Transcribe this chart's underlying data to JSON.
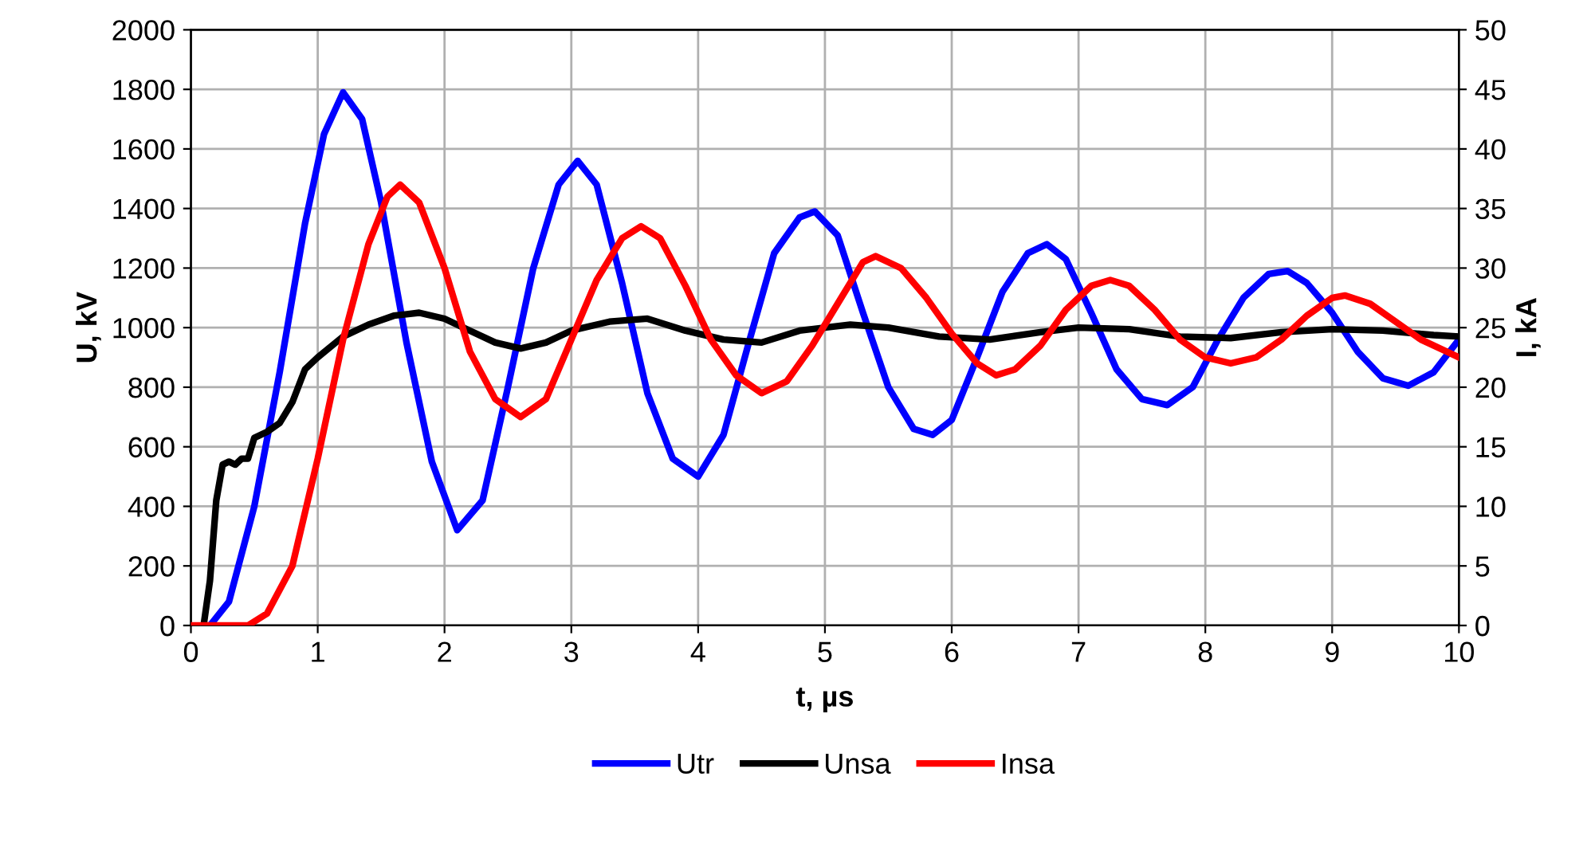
{
  "chart_data": {
    "type": "line",
    "xlabel": "t, µs",
    "ylabel": "U, kV",
    "y2label": "I, kA",
    "xlim": [
      0,
      10
    ],
    "xticks": [
      0,
      1,
      2,
      3,
      4,
      5,
      6,
      7,
      8,
      9,
      10
    ],
    "ylim": [
      0,
      2000
    ],
    "yticks": [
      0,
      200,
      400,
      600,
      800,
      1000,
      1200,
      1400,
      1600,
      1800,
      2000
    ],
    "y2lim": [
      0,
      50
    ],
    "y2ticks": [
      0,
      5,
      10,
      15,
      20,
      25,
      30,
      35,
      40,
      45,
      50
    ],
    "grid": true,
    "legend": "bottom",
    "marker": "none",
    "line_style": "solid",
    "series": [
      {
        "name": "Utr",
        "color": "#0000ff",
        "x": [
          0.15,
          0.3,
          0.5,
          0.7,
          0.9,
          1.05,
          1.2,
          1.35,
          1.5,
          1.7,
          1.9,
          2.1,
          2.3,
          2.5,
          2.7,
          2.9,
          3.05,
          3.2,
          3.4,
          3.6,
          3.8,
          4.0,
          4.2,
          4.4,
          4.6,
          4.8,
          4.92,
          5.1,
          5.3,
          5.5,
          5.7,
          5.85,
          6.0,
          6.2,
          6.4,
          6.6,
          6.75,
          6.9,
          7.1,
          7.3,
          7.5,
          7.7,
          7.9,
          8.1,
          8.3,
          8.5,
          8.65,
          8.8,
          9.0,
          9.2,
          9.4,
          9.6,
          9.8,
          10.0
        ],
        "values": [
          0,
          80,
          400,
          850,
          1350,
          1650,
          1790,
          1700,
          1420,
          950,
          550,
          320,
          420,
          800,
          1200,
          1480,
          1560,
          1480,
          1150,
          780,
          560,
          500,
          640,
          950,
          1250,
          1370,
          1390,
          1310,
          1050,
          800,
          660,
          640,
          690,
          900,
          1120,
          1250,
          1280,
          1230,
          1050,
          860,
          760,
          740,
          800,
          960,
          1100,
          1180,
          1190,
          1150,
          1050,
          920,
          830,
          805,
          850,
          960
        ]
      },
      {
        "name": "Unsa",
        "color": "#000000",
        "x": [
          0.1,
          0.15,
          0.2,
          0.25,
          0.3,
          0.35,
          0.4,
          0.45,
          0.5,
          0.6,
          0.7,
          0.8,
          0.9,
          1.0,
          1.2,
          1.4,
          1.6,
          1.8,
          2.0,
          2.2,
          2.4,
          2.6,
          2.8,
          3.0,
          3.3,
          3.6,
          3.9,
          4.2,
          4.5,
          4.8,
          5.2,
          5.5,
          5.9,
          6.3,
          6.7,
          7.0,
          7.4,
          7.8,
          8.2,
          8.6,
          9.0,
          9.4,
          9.8,
          10
        ],
        "values": [
          0,
          150,
          420,
          540,
          550,
          540,
          560,
          560,
          630,
          650,
          680,
          750,
          860,
          900,
          970,
          1010,
          1040,
          1050,
          1030,
          990,
          950,
          930,
          950,
          990,
          1020,
          1030,
          990,
          960,
          950,
          990,
          1010,
          1000,
          970,
          960,
          985,
          1000,
          995,
          970,
          965,
          985,
          995,
          990,
          975,
          970
        ]
      },
      {
        "name": "Insa",
        "color": "#ff0000",
        "axis": "y2",
        "x": [
          0,
          0.45,
          0.6,
          0.8,
          1.0,
          1.2,
          1.4,
          1.55,
          1.65,
          1.8,
          2.0,
          2.2,
          2.4,
          2.6,
          2.8,
          3.0,
          3.2,
          3.4,
          3.55,
          3.7,
          3.9,
          4.1,
          4.3,
          4.5,
          4.7,
          4.9,
          5.1,
          5.3,
          5.4,
          5.6,
          5.8,
          6.0,
          6.2,
          6.35,
          6.5,
          6.7,
          6.9,
          7.1,
          7.25,
          7.4,
          7.6,
          7.8,
          8.0,
          8.2,
          8.4,
          8.6,
          8.8,
          9.0,
          9.1,
          9.3,
          9.5,
          9.7,
          9.9,
          10
        ],
        "values": [
          0,
          0,
          1,
          5,
          14,
          24,
          32,
          36,
          37,
          35.5,
          30,
          23,
          19,
          17.5,
          19,
          24,
          29,
          32.5,
          33.5,
          32.5,
          28.5,
          24,
          21,
          19.5,
          20.5,
          23.5,
          27,
          30.5,
          31,
          30,
          27.5,
          24.5,
          22,
          21,
          21.5,
          23.5,
          26.5,
          28.5,
          29,
          28.5,
          26.5,
          24,
          22.5,
          22,
          22.5,
          24,
          26,
          27.5,
          27.7,
          27,
          25.5,
          24,
          23,
          22.5
        ]
      }
    ]
  }
}
